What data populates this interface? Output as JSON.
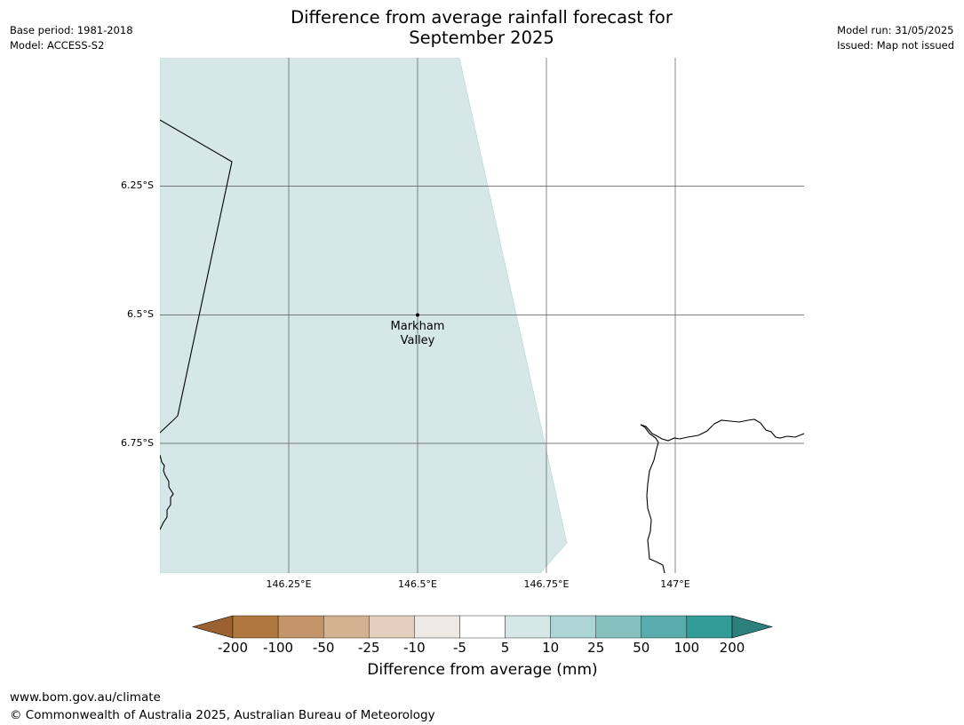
{
  "title_line1": "Difference from average rainfall forecast for",
  "title_line2": "September 2025",
  "meta_left": {
    "base_period": "Base period: 1981-2018",
    "model": "Model: ACCESS-S2"
  },
  "meta_right": {
    "model_run": "Model run: 31/05/2025",
    "issued": "Issued: Map not issued"
  },
  "map": {
    "lat_ticks": [
      "6.25°S",
      "6.5°S",
      "6.75°S"
    ],
    "lon_ticks": [
      "146.25°E",
      "146.5°E",
      "146.75°E",
      "147°E"
    ],
    "place": {
      "name_line1": "Markham",
      "name_line2": "Valley",
      "lon": 146.5,
      "lat": -6.5
    },
    "fill_category": "5 to 10",
    "fill_color": "#d5e8e7"
  },
  "colorbar": {
    "title": "Difference from average (mm)",
    "labels": [
      "-200",
      "-100",
      "-50",
      "-25",
      "-10",
      "-5",
      "5",
      "10",
      "25",
      "50",
      "100",
      "200"
    ],
    "colors": [
      "#9b6131",
      "#b0773e",
      "#c49568",
      "#d4b18f",
      "#e4cfbc",
      "#ede9e5",
      "#ffffff",
      "#d5e8e7",
      "#add5d5",
      "#84c1bf",
      "#5aabab",
      "#349c98",
      "#2c7f7c"
    ]
  },
  "footer": {
    "url": "www.bom.gov.au/climate",
    "copyright": "© Commonwealth of Australia 2025, Australian Bureau of Meteorology"
  }
}
